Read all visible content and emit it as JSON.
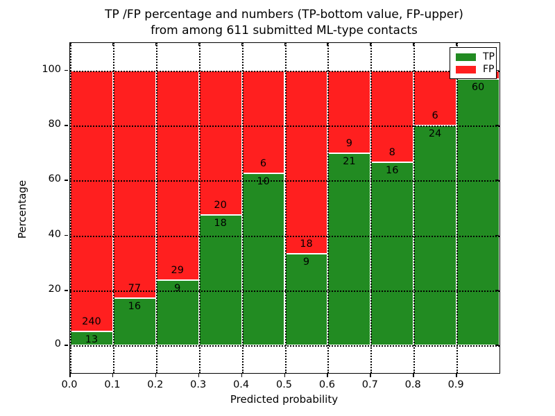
{
  "figure": {
    "title_lines": [
      "TP /FP percentage and numbers (TP-bottom value, FP-upper)",
      "from among 611 submitted ML-type contacts"
    ]
  },
  "chart_data": {
    "type": "bar",
    "stacked": true,
    "title": "TP /FP percentage and numbers (TP-bottom value, FP-upper)\nfrom among 611 submitted ML-type contacts",
    "xlabel": "Predicted probability",
    "ylabel": "Percentage",
    "total_contacts": 611,
    "xlim": [
      0.0,
      1.0
    ],
    "ylim": [
      -10,
      110
    ],
    "x_tick_labels": [
      "0.0",
      "0.1",
      "0.2",
      "0.3",
      "0.4",
      "0.5",
      "0.6",
      "0.7",
      "0.8",
      "0.9"
    ],
    "y_tick_values": [
      0,
      20,
      40,
      60,
      80,
      100
    ],
    "grid": "dotted",
    "legend": {
      "position": "upper right",
      "entries": [
        {
          "label": "TP",
          "color": "#228B22"
        },
        {
          "label": "FP",
          "color": "#FF1F1F"
        }
      ]
    },
    "colors": {
      "tp": "#228B22",
      "fp": "#FF1F1F",
      "bar_edge": "#ffffff"
    },
    "bins": [
      {
        "range": [
          0.0,
          0.1
        ],
        "tp": 13,
        "fp": 240,
        "tp_pct": 5.1,
        "fp_label_visible": true
      },
      {
        "range": [
          0.1,
          0.2
        ],
        "tp": 16,
        "fp": 77,
        "tp_pct": 17.2,
        "fp_label_visible": true
      },
      {
        "range": [
          0.2,
          0.3
        ],
        "tp": 9,
        "fp": 29,
        "tp_pct": 23.7,
        "fp_label_visible": true
      },
      {
        "range": [
          0.3,
          0.4
        ],
        "tp": 18,
        "fp": 20,
        "tp_pct": 47.4,
        "fp_label_visible": true
      },
      {
        "range": [
          0.4,
          0.5
        ],
        "tp": 10,
        "fp": 6,
        "tp_pct": 62.5,
        "fp_label_visible": true
      },
      {
        "range": [
          0.5,
          0.6
        ],
        "tp": 9,
        "fp": 18,
        "tp_pct": 33.3,
        "fp_label_visible": true
      },
      {
        "range": [
          0.6,
          0.7
        ],
        "tp": 21,
        "fp": 9,
        "tp_pct": 70.0,
        "fp_label_visible": true
      },
      {
        "range": [
          0.7,
          0.8
        ],
        "tp": 16,
        "fp": 8,
        "tp_pct": 66.7,
        "fp_label_visible": true
      },
      {
        "range": [
          0.8,
          0.9
        ],
        "tp": 24,
        "fp": 6,
        "tp_pct": 80.0,
        "fp_label_visible": true
      },
      {
        "range": [
          0.9,
          1.0
        ],
        "tp": 60,
        "fp": 2,
        "tp_pct": 96.8,
        "fp_label_visible": false
      }
    ]
  }
}
